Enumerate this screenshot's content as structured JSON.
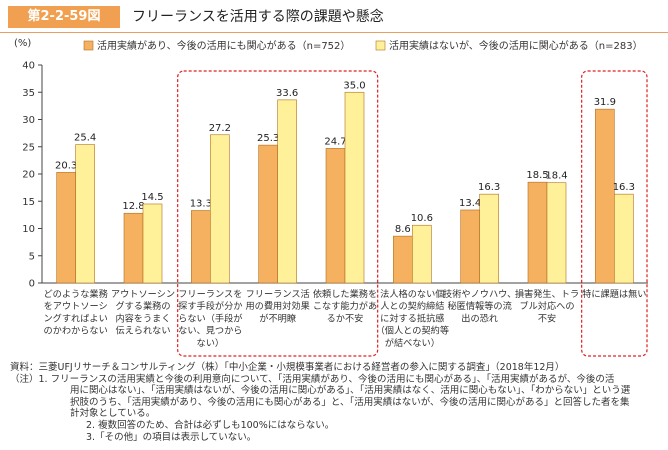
{
  "figure": {
    "label": "第2-2-59図",
    "title": "フリーランスを活用する際の課題や懸念"
  },
  "chart_data": {
    "type": "bar",
    "ylabel": "(%)",
    "ylim": [
      0,
      40
    ],
    "yticks": [
      0,
      5,
      10,
      15,
      20,
      25,
      30,
      35,
      40
    ],
    "grid": false,
    "legend_position": "top",
    "categories": [
      [
        "どのような業務",
        "をアウトソーシ",
        "ングすればよい",
        "のかわからない"
      ],
      [
        "アウトソーシン",
        "グする業務の",
        "内容をうまく",
        "伝えられない"
      ],
      [
        "フリーランスを",
        "探す手段が分か",
        "らない（手段が",
        "ない、見つから",
        "ない）"
      ],
      [
        "フリーランス活",
        "用の費用対効果",
        "が不明瞭"
      ],
      [
        "依頼した業務を",
        "こなす能力があ",
        "るか不安"
      ],
      [
        "法人格のない個",
        "人との契約締結",
        "に対する抵抗感",
        "（個人との契約等",
        "が結べない）"
      ],
      [
        "技術やノウハウ、",
        "秘匿情報等の流",
        "出の恐れ"
      ],
      [
        "損害発生、トラ",
        "ブル対応への",
        "不安"
      ],
      [
        "特に課題は無い"
      ]
    ],
    "series": [
      {
        "name": "活用実績があり、今後の活用にも関心がある（n=752）",
        "color": "#f5b060",
        "values": [
          20.3,
          12.8,
          13.3,
          25.3,
          24.7,
          8.6,
          13.4,
          18.5,
          31.9
        ]
      },
      {
        "name": "活用実績はないが、今後の活用に関心がある（n=283）",
        "color": "#fff09a",
        "values": [
          25.4,
          14.5,
          27.2,
          33.6,
          35.0,
          10.6,
          16.3,
          18.4,
          16.3
        ]
      }
    ],
    "value_labels": [
      [
        "20.3",
        "12.8",
        "13.3",
        "25.3",
        "24.7",
        "8.6",
        "13.4",
        "18.5",
        "31.9"
      ],
      [
        "25.4",
        "14.5",
        "27.2",
        "33.6",
        "35.0",
        "10.6",
        "16.3",
        "18.4",
        "16.3"
      ]
    ],
    "highlight_groups": [
      [
        2,
        4
      ],
      [
        8,
        8
      ]
    ],
    "colors": {
      "bar_stroke": "#b07020",
      "highlight": "#e02020",
      "axis": "#444444"
    }
  },
  "notes": {
    "source": "資料：三菱UFJリサーチ＆コンサルティング（株）「中小企業・小規模事業者における経営者の参入に関する調査」（2018年12月）",
    "note1_lines": [
      "（注）1. フリーランスの活用実績と今後の利用意向について、「活用実績があり、今後の活用にも関心がある」、「活用実績があるが、今後の活",
      "用に関心はない」、「活用実績はないが、今後の活用に関心がある」、「活用実績はなく、活用に関心もない」、「わからない」という選",
      "択肢のうち、「活用実績があり、今後の活用にも関心がある」と、「活用実績はないが、今後の活用に関心がある」と回答した者を集",
      "計対象としている。"
    ],
    "note2": "2. 複数回答のため、合計は必ずしも100%にはならない。",
    "note3": "3.「その他」の項目は表示していない。"
  }
}
